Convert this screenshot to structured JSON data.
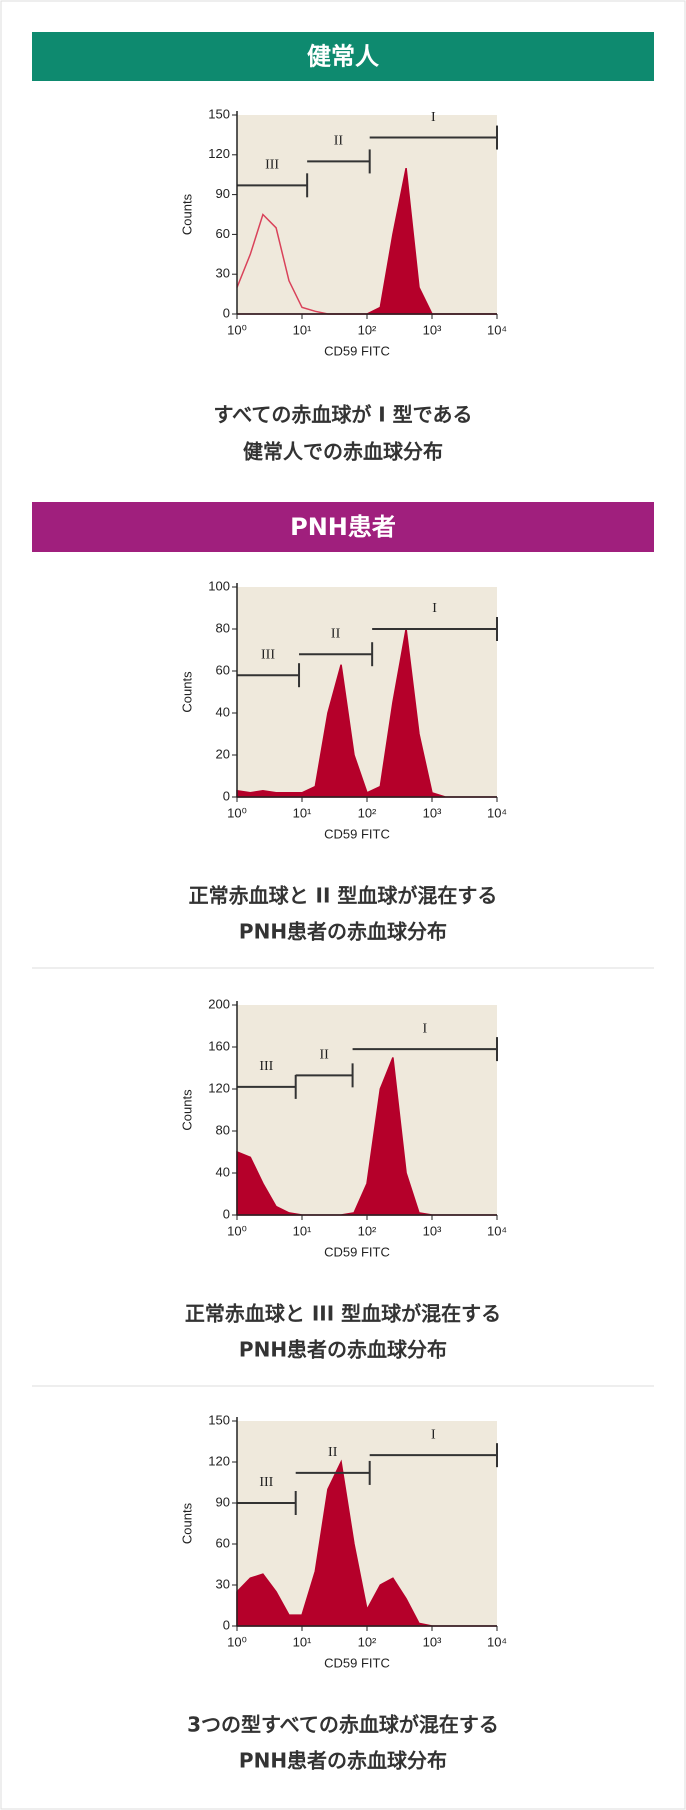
{
  "sections": [
    {
      "heading": "健常人",
      "color": "#0e8a6f",
      "items": [
        {
          "chart": {
            "type": "area",
            "ylabel": "Counts",
            "xlabel": "CD59 FITC",
            "log_x": true,
            "xlim": [
              1,
              10000
            ],
            "xticks": [
              {
                "value": 1,
                "label": "10⁰"
              },
              {
                "value": 10,
                "label": "10¹"
              },
              {
                "value": 100,
                "label": "10²"
              },
              {
                "value": 1000,
                "label": "10³"
              },
              {
                "value": 10000,
                "label": "10⁴"
              }
            ],
            "ylim": [
              0,
              150
            ],
            "yticks": [
              0,
              30,
              60,
              90,
              120,
              150
            ],
            "x": [
              1,
              1.6,
              2.5,
              4,
              6.3,
              10,
              16,
              25,
              40,
              63,
              100,
              160,
              250,
              400,
              630,
              1000,
              1600,
              2500,
              4000,
              6300,
              10000
            ],
            "series": [
              {
                "color": "#d9425a",
                "fill": false,
                "values": [
                  20,
                  45,
                  75,
                  65,
                  25,
                  5,
                  2,
                  0,
                  0,
                  0,
                  0,
                  0,
                  0,
                  0,
                  0,
                  0,
                  0,
                  0,
                  0,
                  0,
                  0
                ]
              },
              {
                "color": "#b5002a",
                "fill": true,
                "values": [
                  0,
                  0,
                  0,
                  0,
                  0,
                  0,
                  0,
                  0,
                  0,
                  0,
                  0,
                  5,
                  60,
                  110,
                  20,
                  0,
                  0,
                  0,
                  0,
                  0,
                  0
                ]
              }
            ],
            "gates": [
              {
                "label": "III",
                "from": 1,
                "to": 12,
                "level": 97
              },
              {
                "label": "II",
                "from": 12,
                "to": 110,
                "level": 115
              },
              {
                "label": "I",
                "from": 110,
                "to": 10000,
                "level": 133
              }
            ]
          },
          "caption": [
            "すべての赤血球が I 型である",
            "健常人での赤血球分布"
          ]
        }
      ]
    },
    {
      "heading": "PNH患者",
      "color": "#a01f7d",
      "items": [
        {
          "chart": {
            "type": "area",
            "ylabel": "Counts",
            "xlabel": "CD59 FITC",
            "log_x": true,
            "xlim": [
              1,
              10000
            ],
            "xticks": [
              {
                "value": 1,
                "label": "10⁰"
              },
              {
                "value": 10,
                "label": "10¹"
              },
              {
                "value": 100,
                "label": "10²"
              },
              {
                "value": 1000,
                "label": "10³"
              },
              {
                "value": 10000,
                "label": "10⁴"
              }
            ],
            "ylim": [
              0,
              100
            ],
            "yticks": [
              0,
              20,
              40,
              60,
              80,
              100
            ],
            "x": [
              1,
              1.6,
              2.5,
              4,
              6.3,
              10,
              16,
              25,
              40,
              63,
              100,
              160,
              250,
              400,
              630,
              1000,
              1600,
              2500,
              4000,
              6300,
              10000
            ],
            "series": [
              {
                "color": "#b5002a",
                "fill": true,
                "values": [
                  3,
                  2,
                  3,
                  2,
                  2,
                  2,
                  5,
                  40,
                  63,
                  20,
                  2,
                  5,
                  45,
                  80,
                  30,
                  2,
                  0,
                  0,
                  0,
                  0,
                  0
                ]
              }
            ],
            "gates": [
              {
                "label": "III",
                "from": 1,
                "to": 9,
                "level": 58
              },
              {
                "label": "II",
                "from": 9,
                "to": 120,
                "level": 68
              },
              {
                "label": "I",
                "from": 120,
                "to": 10000,
                "level": 80
              }
            ]
          },
          "caption": [
            "正常赤血球と II 型血球が混在する",
            "PNH患者の赤血球分布"
          ]
        },
        {
          "chart": {
            "type": "area",
            "ylabel": "Counts",
            "xlabel": "CD59 FITC",
            "log_x": true,
            "xlim": [
              1,
              10000
            ],
            "xticks": [
              {
                "value": 1,
                "label": "10⁰"
              },
              {
                "value": 10,
                "label": "10¹"
              },
              {
                "value": 100,
                "label": "10²"
              },
              {
                "value": 1000,
                "label": "10³"
              },
              {
                "value": 10000,
                "label": "10⁴"
              }
            ],
            "ylim": [
              0,
              200
            ],
            "yticks": [
              0,
              40,
              80,
              120,
              160,
              200
            ],
            "x": [
              1,
              1.6,
              2.5,
              4,
              6.3,
              10,
              16,
              25,
              40,
              63,
              100,
              160,
              250,
              400,
              630,
              1000,
              1600,
              2500,
              4000,
              6300,
              10000
            ],
            "series": [
              {
                "color": "#b5002a",
                "fill": true,
                "values": [
                  60,
                  55,
                  30,
                  8,
                  2,
                  0,
                  0,
                  0,
                  0,
                  2,
                  30,
                  120,
                  150,
                  40,
                  2,
                  0,
                  0,
                  0,
                  0,
                  0,
                  0
                ]
              }
            ],
            "gates": [
              {
                "label": "III",
                "from": 1,
                "to": 8,
                "level": 122
              },
              {
                "label": "II",
                "from": 8,
                "to": 60,
                "level": 133
              },
              {
                "label": "I",
                "from": 60,
                "to": 10000,
                "level": 158
              }
            ]
          },
          "caption": [
            "正常赤血球と III 型血球が混在する",
            "PNH患者の赤血球分布"
          ]
        },
        {
          "chart": {
            "type": "area",
            "ylabel": "Counts",
            "xlabel": "CD59 FITC",
            "log_x": true,
            "xlim": [
              1,
              10000
            ],
            "xticks": [
              {
                "value": 1,
                "label": "10⁰"
              },
              {
                "value": 10,
                "label": "10¹"
              },
              {
                "value": 100,
                "label": "10²"
              },
              {
                "value": 1000,
                "label": "10³"
              },
              {
                "value": 10000,
                "label": "10⁴"
              }
            ],
            "ylim": [
              0,
              150
            ],
            "yticks": [
              0,
              30,
              60,
              90,
              120,
              150
            ],
            "x": [
              1,
              1.6,
              2.5,
              4,
              6.3,
              10,
              16,
              25,
              40,
              63,
              100,
              160,
              250,
              400,
              630,
              1000,
              1600,
              2500,
              4000,
              6300,
              10000
            ],
            "series": [
              {
                "color": "#b5002a",
                "fill": true,
                "values": [
                  25,
                  35,
                  38,
                  25,
                  8,
                  8,
                  40,
                  100,
                  120,
                  60,
                  12,
                  30,
                  35,
                  20,
                  2,
                  0,
                  0,
                  0,
                  0,
                  0,
                  0
                ]
              }
            ],
            "gates": [
              {
                "label": "III",
                "from": 1,
                "to": 8,
                "level": 90
              },
              {
                "label": "II",
                "from": 8,
                "to": 110,
                "level": 112
              },
              {
                "label": "I",
                "from": 110,
                "to": 10000,
                "level": 125
              }
            ]
          },
          "caption": [
            "3つの型すべての赤血球が混在する",
            "PNH患者の赤血球分布"
          ]
        }
      ]
    }
  ]
}
